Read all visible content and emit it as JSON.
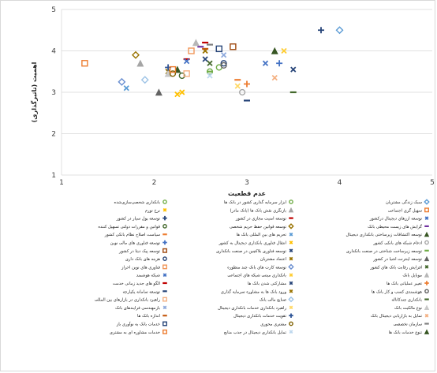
{
  "chart_data": {
    "type": "scatter",
    "title": "",
    "xlabel": "عدم قطعیت",
    "ylabel": "اهمیت (تاثیرگذاری)",
    "xlim": [
      1,
      5
    ],
    "ylim": [
      1,
      5
    ],
    "xticks": [
      "1",
      "2",
      "3",
      "4",
      "5"
    ],
    "yticks": [
      "1",
      "2",
      "3",
      "4",
      "5"
    ],
    "grid": "horizontal",
    "legend_position": "bottom",
    "series": [
      {
        "name": "سبک زندگی مشتریان",
        "color": "#5b9bd5",
        "marker": "diamond",
        "x": 4.0,
        "y": 4.5
      },
      {
        "name": "ابزار سرمایه گذاری کشور در بانک ها",
        "color": "#70ad47",
        "marker": "circle",
        "x": 2.6,
        "y": 3.5
      },
      {
        "name": "بانکداری شخصی‌سازی‌شده",
        "color": "#70ad47",
        "marker": "circle",
        "x": 2.7,
        "y": 3.6
      },
      {
        "name": "سهیل گری اجتماعی",
        "color": "#ed7d31",
        "marker": "square",
        "x": 1.25,
        "y": 3.7
      },
      {
        "name": "بازنگری نقش بانک ها (بانک مادر)",
        "color": "#a5a5a5",
        "marker": "triangle",
        "x": 1.85,
        "y": 3.7
      },
      {
        "name": "نرخ تورم",
        "color": "#ffc000",
        "marker": "x",
        "x": 2.3,
        "y": 3.0
      },
      {
        "name": "توسعه ارزهای دیجیتال درکشور",
        "color": "#4472c4",
        "marker": "x",
        "x": 3.2,
        "y": 3.7
      },
      {
        "name": "توسعه امنیت مجازی در کشور",
        "color": "#c00000",
        "marker": "dash",
        "x": 2.35,
        "y": 3.8
      },
      {
        "name": "توسعه پول سیار در کشور",
        "color": "#264478",
        "marker": "plus",
        "x": 3.8,
        "y": 4.5
      },
      {
        "name": "گرایش های زیست محیطی بانک",
        "color": "#7030a0",
        "marker": "dash",
        "x": 2.5,
        "y": 4.1
      },
      {
        "name": "توسعه قوانین حفظ حریم شخصی",
        "color": "#997300",
        "marker": "diamond",
        "x": 1.8,
        "y": 3.9
      },
      {
        "name": "قوانین و مقررات دولتی تسهیل کننده",
        "color": "#43682b",
        "marker": "circle",
        "x": 2.3,
        "y": 3.4
      },
      {
        "name": "توسعه اکتشافات زیرساختی بانکداری دیجیتال",
        "color": "#375623",
        "marker": "triangle",
        "x": 3.3,
        "y": 4.0
      },
      {
        "name": "تحریم های بین المللی بانک ها",
        "color": "#5b9bd5",
        "marker": "x",
        "x": 1.7,
        "y": 3.1
      },
      {
        "name": "سیاست اصلاح نظام بانکی کشور",
        "color": "#ed7d31",
        "marker": "dash",
        "x": 2.9,
        "y": 3.3
      },
      {
        "name": "ادغام شبکه های بانکی کشور",
        "color": "#a5a5a5",
        "marker": "circle",
        "x": 2.95,
        "y": 3.0
      },
      {
        "name": "انتقال فناوری بانکداری دیجیتال به کشور",
        "color": "#ffc000",
        "marker": "x",
        "x": 2.25,
        "y": 2.95
      },
      {
        "name": "توسعه فناوری های مالی نوین",
        "color": "#4472c4",
        "marker": "plus",
        "x": 3.35,
        "y": 3.7
      },
      {
        "name": "توسعه زیرساخت شناختی در صنعت بانکداری",
        "color": "#70ad47",
        "marker": "dash",
        "x": 2.6,
        "y": 3.5
      },
      {
        "name": "توسعه فناوری بلاکچین در صنعت بانکداری",
        "color": "#264478",
        "marker": "x",
        "x": 2.55,
        "y": 3.8
      },
      {
        "name": "توسعه پیک دیتا در کشور",
        "color": "#9e480e",
        "marker": "square",
        "x": 2.85,
        "y": 4.1
      },
      {
        "name": "توسعه اینترنت اشیا در کشور",
        "color": "#636363",
        "marker": "triangle",
        "x": 2.05,
        "y": 3.0
      },
      {
        "name": "اعتماد مشتریان",
        "color": "#997300",
        "marker": "x",
        "x": 2.15,
        "y": 3.5
      },
      {
        "name": "هزینه های بانک داری",
        "color": "#264478",
        "marker": "circle",
        "x": 2.75,
        "y": 3.7
      },
      {
        "name": "افزایش رقابت بانک های کشور",
        "color": "#43682b",
        "marker": "x",
        "x": 2.6,
        "y": 3.7
      },
      {
        "name": "توسعه کارت های بانک چند منظوره",
        "color": "#698ed0",
        "marker": "diamond",
        "x": 1.65,
        "y": 3.25
      },
      {
        "name": "فناوری های نوین احراز",
        "color": "#f1975a",
        "marker": "square",
        "x": 2.4,
        "y": 4.0
      },
      {
        "name": "موبایل بانک",
        "color": "#b7b7b7",
        "marker": "triangle",
        "x": 2.45,
        "y": 4.2
      },
      {
        "name": "بانکداری مبتنی شبکه های اجتماعی",
        "color": "#ffcd33",
        "marker": "x",
        "x": 3.4,
        "y": 4.0
      },
      {
        "name": "شبکه هوشمند",
        "color": "#4472c4",
        "marker": "x",
        "x": 2.35,
        "y": 3.75
      },
      {
        "name": "تغییر عملیاتی بانک ها",
        "color": "#ed7d31",
        "marker": "plus",
        "x": 3.0,
        "y": 3.2
      },
      {
        "name": "مشارکتی شدن بانک ها",
        "color": "#264478",
        "marker": "x",
        "x": 3.5,
        "y": 3.55
      },
      {
        "name": "الگو های جدید زمانی خدمت",
        "color": "#c00000",
        "marker": "dash",
        "x": 2.55,
        "y": 4.2
      },
      {
        "name": "هوشمندی کسب و کار بانک ها",
        "color": "#636363",
        "marker": "circle",
        "x": 2.75,
        "y": 3.65
      },
      {
        "name": "ورود بانک ها به مشاوره سرمایه گذاری",
        "color": "#997300",
        "marker": "x",
        "x": 2.55,
        "y": 4.0
      },
      {
        "name": "توسعه سامانه یکپارچه",
        "color": "#264478",
        "marker": "dash",
        "x": 3.0,
        "y": 2.8
      },
      {
        "name": "بانکداری چندکاناله",
        "color": "#43682b",
        "marker": "dash",
        "x": 3.5,
        "y": 3.0
      },
      {
        "name": "صنایع مالی بانک",
        "color": "#9dc3e6",
        "marker": "diamond",
        "x": 1.9,
        "y": 3.3
      },
      {
        "name": "راهبرد بانکداری در بازارهای بین المللی",
        "color": "#f4b183",
        "marker": "square",
        "x": 2.35,
        "y": 3.45
      },
      {
        "name": "نوع مالکیت بانک",
        "color": "#c9c9c9",
        "marker": "triangle",
        "x": 2.15,
        "y": 3.45
      },
      {
        "name": "راهبرد بانکداری خدمات بانکداری دیجیتال",
        "color": "#ffd966",
        "marker": "x",
        "x": 2.9,
        "y": 3.15
      },
      {
        "name": "بازمهندسی فرایندهای بانک",
        "color": "#8faadc",
        "marker": "x",
        "x": 2.75,
        "y": 3.9
      },
      {
        "name": "تمایل به بازاریابی دیجیتال بانک",
        "color": "#f4b183",
        "marker": "x",
        "x": 3.3,
        "y": 3.35
      },
      {
        "name": "تقویت خدمات بانکداری دیجیتال",
        "color": "#2f5597",
        "marker": "plus",
        "x": 2.15,
        "y": 3.6
      },
      {
        "name": "اندازه بانک ها",
        "color": "#c55a11",
        "marker": "dash",
        "x": 2.55,
        "y": 4.05
      },
      {
        "name": "سازمان تخصصی",
        "color": "#7f7f7f",
        "marker": "dash",
        "x": 2.6,
        "y": 4.15
      },
      {
        "name": "مشتری محوری",
        "color": "#7f6000",
        "marker": "circle",
        "x": 2.2,
        "y": 3.45
      },
      {
        "name": "خدمات بانک به نوآوری باز",
        "color": "#264478",
        "marker": "square",
        "x": 2.7,
        "y": 4.05
      },
      {
        "name": "تنوع خدمات بانک ها",
        "color": "#375623",
        "marker": "triangle",
        "x": 2.25,
        "y": 3.55
      },
      {
        "name": "تمایل بانکداری دیجیتال در جذب منابع",
        "color": "#bdd7ee",
        "marker": "x",
        "x": 2.6,
        "y": 3.4
      },
      {
        "name": "خدمات مشاوره ای به مشتری",
        "color": "#ed7d31",
        "marker": "square",
        "x": 2.2,
        "y": 3.55
      }
    ]
  }
}
